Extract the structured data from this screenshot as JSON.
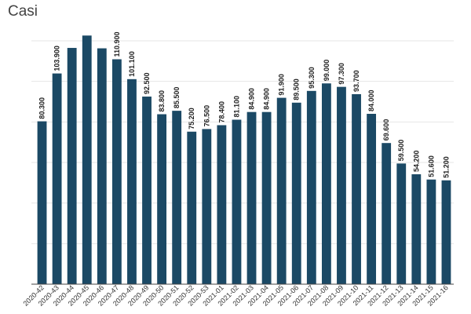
{
  "chart_data": {
    "type": "bar",
    "title": "Casi",
    "xlabel": "",
    "ylabel": "",
    "ylim": [
      0,
      120000
    ],
    "grid": true,
    "bar_color": "#1b4965",
    "categories": [
      "2020-42",
      "2020-43",
      "2020-44",
      "2020-45",
      "2020-46",
      "2020-47",
      "2020-48",
      "2020-49",
      "2020-50",
      "2020-51",
      "2020-52",
      "2020-53",
      "2021-01",
      "2021-02",
      "2021-03",
      "2021-04",
      "2021-05",
      "2021-06",
      "2021-07",
      "2021-08",
      "2021-09",
      "2021-10",
      "2021-11",
      "2021-12",
      "2021-13",
      "2021-14",
      "2021-15",
      "2021-16"
    ],
    "values": [
      80300,
      103900,
      116500,
      122600,
      116300,
      110900,
      101100,
      92500,
      83800,
      85500,
      75200,
      76500,
      78400,
      81100,
      84900,
      84900,
      91900,
      89500,
      95300,
      99000,
      97300,
      93700,
      84000,
      69600,
      59500,
      54200,
      51600,
      51200
    ],
    "data_labels": [
      "80.300",
      "103.900",
      "",
      "",
      "",
      "110.900",
      "101.100",
      "92.500",
      "83.800",
      "85.500",
      "75.200",
      "76.500",
      "78.400",
      "81.100",
      "84.900",
      "84.900",
      "91.900",
      "89.500",
      "95.300",
      "99.000",
      "97.300",
      "93.700",
      "84.000",
      "69.600",
      "59.500",
      "54.200",
      "51.600",
      "51.200"
    ]
  }
}
